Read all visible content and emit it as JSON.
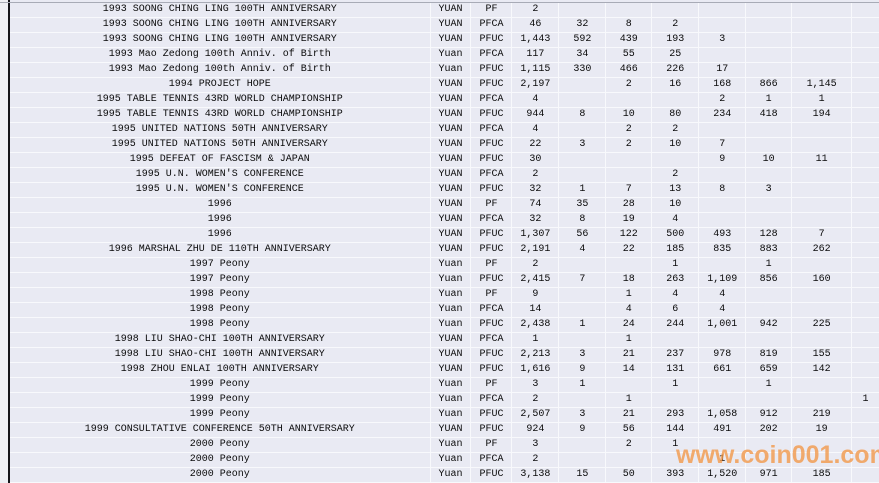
{
  "watermark": {
    "text": "www.coin001.com",
    "color": "#f1984a"
  },
  "colors": {
    "cell_background": "#e9eaf3",
    "gridline": "#f8f9fc",
    "pane_border": "#15151a",
    "top_divider": "#a8abb6"
  },
  "table": {
    "rows": [
      {
        "desc": "1993 SOONG CHING LING 100TH ANNIVERSARY",
        "currency": "YUAN",
        "type": "PF",
        "values": [
          "2",
          "",
          "",
          "",
          "",
          "",
          "",
          ""
        ]
      },
      {
        "desc": "1993 SOONG CHING LING 100TH ANNIVERSARY",
        "currency": "YUAN",
        "type": "PFCA",
        "values": [
          "46",
          "32",
          "8",
          "2",
          "",
          "",
          "",
          ""
        ]
      },
      {
        "desc": "1993 SOONG CHING LING 100TH ANNIVERSARY",
        "currency": "YUAN",
        "type": "PFUC",
        "values": [
          "1,443",
          "592",
          "439",
          "193",
          "3",
          "",
          "",
          ""
        ]
      },
      {
        "desc": "1993 Mao Zedong 100th Anniv. of Birth",
        "currency": "Yuan",
        "type": "PFCA",
        "values": [
          "117",
          "34",
          "55",
          "25",
          "",
          "",
          "",
          ""
        ]
      },
      {
        "desc": "1993 Mao Zedong 100th Anniv. of Birth",
        "currency": "Yuan",
        "type": "PFUC",
        "values": [
          "1,115",
          "330",
          "466",
          "226",
          "17",
          "",
          "",
          ""
        ]
      },
      {
        "desc": "1994 PROJECT HOPE",
        "currency": "YUAN",
        "type": "PFUC",
        "values": [
          "2,197",
          "",
          "2",
          "16",
          "168",
          "866",
          "1,145",
          ""
        ]
      },
      {
        "desc": "1995 TABLE TENNIS 43RD WORLD CHAMPIONSHIP",
        "currency": "YUAN",
        "type": "PFCA",
        "values": [
          "4",
          "",
          "",
          "",
          "2",
          "1",
          "1",
          ""
        ]
      },
      {
        "desc": "1995 TABLE TENNIS 43RD WORLD CHAMPIONSHIP",
        "currency": "YUAN",
        "type": "PFUC",
        "values": [
          "944",
          "8",
          "10",
          "80",
          "234",
          "418",
          "194",
          ""
        ]
      },
      {
        "desc": "1995 UNITED NATIONS 50TH ANNIVERSARY",
        "currency": "YUAN",
        "type": "PFCA",
        "values": [
          "4",
          "",
          "2",
          "2",
          "",
          "",
          "",
          ""
        ]
      },
      {
        "desc": "1995 UNITED NATIONS 50TH ANNIVERSARY",
        "currency": "YUAN",
        "type": "PFUC",
        "values": [
          "22",
          "3",
          "2",
          "10",
          "7",
          "",
          "",
          ""
        ]
      },
      {
        "desc": "1995 DEFEAT OF FASCISM & JAPAN",
        "currency": "YUAN",
        "type": "PFUC",
        "values": [
          "30",
          "",
          "",
          "",
          "9",
          "10",
          "11",
          ""
        ]
      },
      {
        "desc": "1995 U.N. WOMEN'S CONFERENCE",
        "currency": "YUAN",
        "type": "PFCA",
        "values": [
          "2",
          "",
          "",
          "2",
          "",
          "",
          "",
          ""
        ]
      },
      {
        "desc": "1995 U.N. WOMEN'S CONFERENCE",
        "currency": "YUAN",
        "type": "PFUC",
        "values": [
          "32",
          "1",
          "7",
          "13",
          "8",
          "3",
          "",
          ""
        ]
      },
      {
        "desc": "1996",
        "currency": "YUAN",
        "type": "PF",
        "values": [
          "74",
          "35",
          "28",
          "10",
          "",
          "",
          "",
          ""
        ]
      },
      {
        "desc": "1996",
        "currency": "YUAN",
        "type": "PFCA",
        "values": [
          "32",
          "8",
          "19",
          "4",
          "",
          "",
          "",
          ""
        ]
      },
      {
        "desc": "1996",
        "currency": "YUAN",
        "type": "PFUC",
        "values": [
          "1,307",
          "56",
          "122",
          "500",
          "493",
          "128",
          "7",
          ""
        ]
      },
      {
        "desc": "1996 MARSHAL ZHU DE 110TH ANNIVERSARY",
        "currency": "YUAN",
        "type": "PFUC",
        "values": [
          "2,191",
          "4",
          "22",
          "185",
          "835",
          "883",
          "262",
          ""
        ]
      },
      {
        "desc": "1997 Peony",
        "currency": "Yuan",
        "type": "PF",
        "values": [
          "2",
          "",
          "",
          "1",
          "",
          "1",
          "",
          ""
        ]
      },
      {
        "desc": "1997 Peony",
        "currency": "Yuan",
        "type": "PFUC",
        "values": [
          "2,415",
          "7",
          "18",
          "263",
          "1,109",
          "856",
          "160",
          ""
        ]
      },
      {
        "desc": "1998 Peony",
        "currency": "Yuan",
        "type": "PF",
        "values": [
          "9",
          "",
          "1",
          "4",
          "4",
          "",
          "",
          ""
        ]
      },
      {
        "desc": "1998 Peony",
        "currency": "Yuan",
        "type": "PFCA",
        "values": [
          "14",
          "",
          "4",
          "6",
          "4",
          "",
          "",
          ""
        ]
      },
      {
        "desc": "1998 Peony",
        "currency": "Yuan",
        "type": "PFUC",
        "values": [
          "2,438",
          "1",
          "24",
          "244",
          "1,001",
          "942",
          "225",
          ""
        ]
      },
      {
        "desc": "1998 LIU SHAO-CHI 100TH ANNIVERSARY",
        "currency": "YUAN",
        "type": "PFCA",
        "values": [
          "1",
          "",
          "1",
          "",
          "",
          "",
          "",
          ""
        ]
      },
      {
        "desc": "1998 LIU SHAO-CHI 100TH ANNIVERSARY",
        "currency": "YUAN",
        "type": "PFUC",
        "values": [
          "2,213",
          "3",
          "21",
          "237",
          "978",
          "819",
          "155",
          ""
        ]
      },
      {
        "desc": "1998 ZHOU ENLAI 100TH ANNIVERSARY",
        "currency": "YUAN",
        "type": "PFUC",
        "values": [
          "1,616",
          "9",
          "14",
          "131",
          "661",
          "659",
          "142",
          ""
        ]
      },
      {
        "desc": "1999 Peony",
        "currency": "Yuan",
        "type": "PF",
        "values": [
          "3",
          "1",
          "",
          "1",
          "",
          "1",
          "",
          ""
        ]
      },
      {
        "desc": "1999 Peony",
        "currency": "Yuan",
        "type": "PFCA",
        "values": [
          "2",
          "",
          "1",
          "",
          "",
          "",
          "",
          "1"
        ]
      },
      {
        "desc": "1999 Peony",
        "currency": "Yuan",
        "type": "PFUC",
        "values": [
          "2,507",
          "3",
          "21",
          "293",
          "1,058",
          "912",
          "219",
          ""
        ]
      },
      {
        "desc": "1999 CONSULTATIVE CONFERENCE 50TH ANNIVERSARY",
        "currency": "YUAN",
        "type": "PFUC",
        "values": [
          "924",
          "9",
          "56",
          "144",
          "491",
          "202",
          "19",
          ""
        ]
      },
      {
        "desc": "2000 Peony",
        "currency": "Yuan",
        "type": "PF",
        "values": [
          "3",
          "",
          "2",
          "1",
          "",
          "",
          "",
          ""
        ]
      },
      {
        "desc": "2000 Peony",
        "currency": "Yuan",
        "type": "PFCA",
        "values": [
          "2",
          "",
          "",
          "",
          "1",
          "",
          "",
          ""
        ]
      },
      {
        "desc": "2000 Peony",
        "currency": "Yuan",
        "type": "PFUC",
        "values": [
          "3,138",
          "15",
          "50",
          "393",
          "1,520",
          "971",
          "185",
          ""
        ]
      }
    ]
  }
}
